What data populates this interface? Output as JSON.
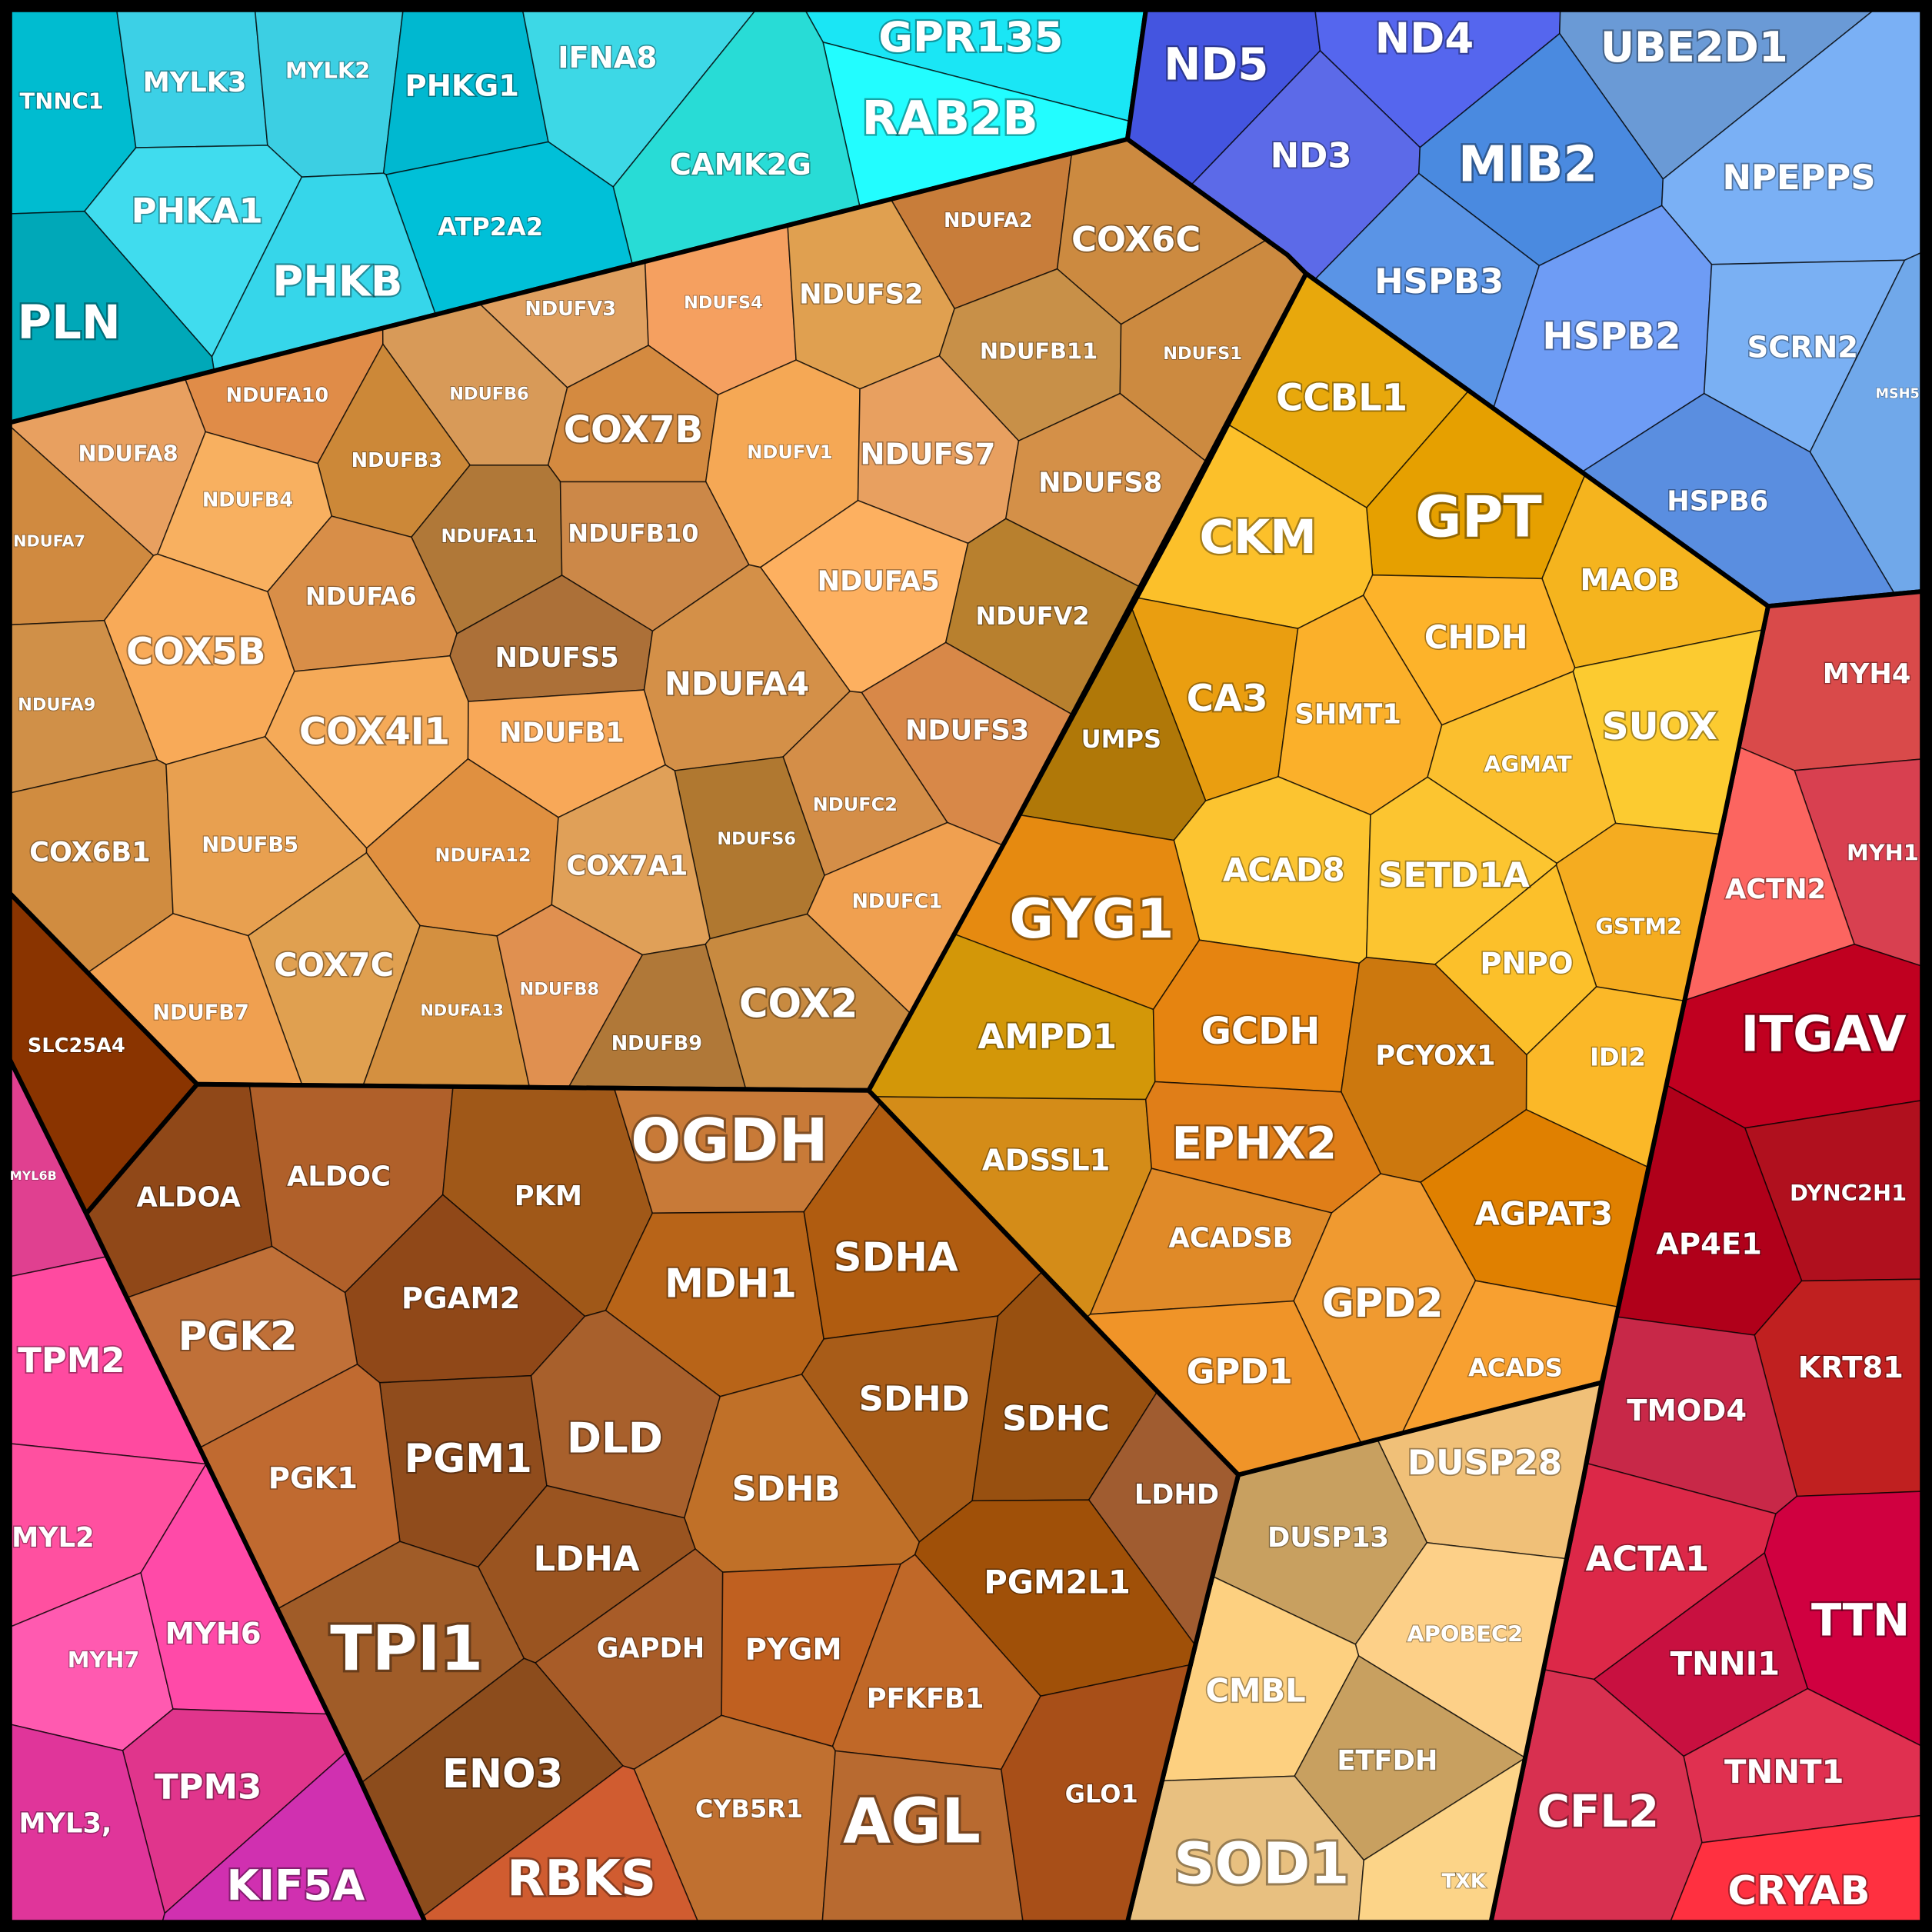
{
  "groups": [
    {
      "cells": [
        {
          "label": "TNNC1",
          "color": "#00bcd0"
        },
        {
          "label": "MYLK3",
          "color": "#3cd0e6"
        },
        {
          "label": "MYLK2",
          "color": "#3ccfe3"
        },
        {
          "label": "PHKG1",
          "color": "#00b8d0"
        },
        {
          "label": "IFNA8",
          "color": "#3dd8e6"
        },
        {
          "label": "GPR135",
          "color": "#1ae6f5"
        },
        {
          "label": "RAB2B",
          "color": "#22fdff"
        },
        {
          "label": "CAMK2G",
          "color": "#28dcd6"
        },
        {
          "label": "PHKA1",
          "color": "#40dcee"
        },
        {
          "label": "ATP2A2",
          "color": "#00c0d8"
        },
        {
          "label": "PHKB",
          "color": "#36d6ea"
        },
        {
          "label": "PLN",
          "color": "#00a8b8"
        }
      ]
    },
    {
      "cells": [
        {
          "label": "ND5",
          "color": "#4455e0"
        },
        {
          "label": "ND4",
          "color": "#5566ee"
        },
        {
          "label": "ND3",
          "color": "#5c6ae8"
        },
        {
          "label": "UBE2D1",
          "color": "#6a9ad6"
        },
        {
          "label": "MIB2",
          "color": "#4a8ae0"
        },
        {
          "label": "NPEPPS",
          "color": "#7ab0f5"
        },
        {
          "label": "HSPB3",
          "color": "#5a94e6"
        },
        {
          "label": "HSPB2",
          "color": "#6e9cf5"
        },
        {
          "label": "SCRN2",
          "color": "#7ab0f3"
        },
        {
          "label": "MSH5",
          "color": "#70a8ea"
        },
        {
          "label": "HSPB6",
          "color": "#5a8ee0"
        }
      ]
    },
    {
      "cells": [
        {
          "label": "MYH4",
          "color": "#d94a4a"
        },
        {
          "label": "MYH1",
          "color": "#d84050"
        },
        {
          "label": "ACTN2",
          "color": "#fc6560"
        },
        {
          "label": "ITGAV",
          "color": "#c00020"
        },
        {
          "label": "DYNC2H1",
          "color": "#b0101e"
        },
        {
          "label": "AP4E1",
          "color": "#b0001a"
        },
        {
          "label": "KRT81",
          "color": "#c02020"
        },
        {
          "label": "TMOD4",
          "color": "#c82848"
        },
        {
          "label": "ACTA1",
          "color": "#dc2848"
        },
        {
          "label": "TTN",
          "color": "#d00040"
        },
        {
          "label": "TNNI1",
          "color": "#c81040"
        },
        {
          "label": "TNNT1",
          "color": "#e03050"
        },
        {
          "label": "CFL2",
          "color": "#d83050"
        },
        {
          "label": "CRYAB",
          "color": "#ff3040"
        }
      ]
    },
    {
      "cells": [
        {
          "label": "CCBL1",
          "color": "#e8a80c"
        },
        {
          "label": "GPT",
          "color": "#e6a000"
        },
        {
          "label": "CKM",
          "color": "#fcc02a"
        },
        {
          "label": "MAOB",
          "color": "#f5b41e"
        },
        {
          "label": "CHDH",
          "color": "#fdb32a"
        },
        {
          "label": "CA3",
          "color": "#ea9e10"
        },
        {
          "label": "SHMT1",
          "color": "#fbb02a"
        },
        {
          "label": "SUOX",
          "color": "#fccb30"
        },
        {
          "label": "UMPS",
          "color": "#b07808"
        },
        {
          "label": "AGMAT",
          "color": "#fbbf2e"
        },
        {
          "label": "ACAD8",
          "color": "#fcc430"
        },
        {
          "label": "SETD1A",
          "color": "#fcc530"
        },
        {
          "label": "GSTM2",
          "color": "#f5ac20"
        },
        {
          "label": "PNPO",
          "color": "#fcc02a"
        },
        {
          "label": "IDI2",
          "color": "#fbb828"
        },
        {
          "label": "GYG1",
          "color": "#e68a10"
        },
        {
          "label": "AMPD1",
          "color": "#d39708"
        },
        {
          "label": "GCDH",
          "color": "#e68410"
        },
        {
          "label": "PCYOX1",
          "color": "#cc780e"
        },
        {
          "label": "ADSSL1",
          "color": "#d48c18"
        },
        {
          "label": "EPHX2",
          "color": "#e07e18"
        },
        {
          "label": "AGPAT3",
          "color": "#e08000"
        },
        {
          "label": "ACADSB",
          "color": "#e08a28"
        },
        {
          "label": "GPD2",
          "color": "#f09a30"
        },
        {
          "label": "GPD1",
          "color": "#f09428"
        },
        {
          "label": "ACADS",
          "color": "#f8a030"
        }
      ]
    },
    {
      "cells": [
        {
          "label": "DUSP28",
          "color": "#f0c078"
        },
        {
          "label": "DUSP13",
          "color": "#c8a060"
        },
        {
          "label": "APOBEC2",
          "color": "#fdd088"
        },
        {
          "label": "CMBL",
          "color": "#fdd080"
        },
        {
          "label": "ETFDH",
          "color": "#c8a060"
        },
        {
          "label": "SOD1",
          "color": "#e8c080"
        },
        {
          "label": "TXK",
          "color": "#fcd488"
        }
      ]
    },
    {
      "cells": [
        {
          "label": "NDUFA2",
          "color": "#c87d3a"
        },
        {
          "label": "COX6C",
          "color": "#cc8a40"
        },
        {
          "label": "NDUFV3",
          "color": "#e0a060"
        },
        {
          "label": "NDUFS4",
          "color": "#f5a060"
        },
        {
          "label": "NDUFS2",
          "color": "#e0a050"
        },
        {
          "label": "NDUFA10",
          "color": "#e08c48"
        },
        {
          "label": "NDUFB6",
          "color": "#d89a58"
        },
        {
          "label": "COX7B",
          "color": "#d48a40"
        },
        {
          "label": "NDUFB11",
          "color": "#c89048"
        },
        {
          "label": "NDUFS1",
          "color": "#cc8a40"
        },
        {
          "label": "NDUFA8",
          "color": "#e8a060"
        },
        {
          "label": "NDUFB3",
          "color": "#cc8838"
        },
        {
          "label": "NDUFV1",
          "color": "#f5a855"
        },
        {
          "label": "NDUFS7",
          "color": "#e8a060"
        },
        {
          "label": "NDUFB4",
          "color": "#f8b060"
        },
        {
          "label": "NDUFS8",
          "color": "#d49048"
        },
        {
          "label": "NDUFA7",
          "color": "#d08a40"
        },
        {
          "label": "NDUFA11",
          "color": "#b07838"
        },
        {
          "label": "NDUFB10",
          "color": "#cc8848"
        },
        {
          "label": "NDUFA6",
          "color": "#d88e48"
        },
        {
          "label": "NDUFA5",
          "color": "#fdb060"
        },
        {
          "label": "NDUFV2",
          "color": "#b8802e"
        },
        {
          "label": "COX5B",
          "color": "#f8aa58"
        },
        {
          "label": "NDUFS5",
          "color": "#ac7038"
        },
        {
          "label": "NDUFA4",
          "color": "#d49048"
        },
        {
          "label": "NDUFA9",
          "color": "#d09048"
        },
        {
          "label": "COX4I1",
          "color": "#f5aa58"
        },
        {
          "label": "NDUFB1",
          "color": "#f8a858"
        },
        {
          "label": "NDUFS3",
          "color": "#d88848"
        },
        {
          "label": "NDUFC2",
          "color": "#d48e48"
        },
        {
          "label": "NDUFS6",
          "color": "#b07830"
        },
        {
          "label": "COX6B1",
          "color": "#d08c40"
        },
        {
          "label": "NDUFB5",
          "color": "#e8a050"
        },
        {
          "label": "NDUFA12",
          "color": "#e09040"
        },
        {
          "label": "COX7A1",
          "color": "#e0a058"
        },
        {
          "label": "NDUFC1",
          "color": "#f0a050"
        },
        {
          "label": "COX7C",
          "color": "#e0a050"
        },
        {
          "label": "NDUFA13",
          "color": "#d49040"
        },
        {
          "label": "NDUFB8",
          "color": "#e09050"
        },
        {
          "label": "NDUFB7",
          "color": "#f0a050"
        },
        {
          "label": "COX2",
          "color": "#c88a40"
        },
        {
          "label": "NDUFB9",
          "color": "#b07838"
        }
      ]
    },
    {
      "cells": [
        {
          "label": "SLC25A4",
          "color": "#8a3400"
        }
      ]
    },
    {
      "cells": [
        {
          "label": "ALDOA",
          "color": "#904818"
        },
        {
          "label": "ALDOC",
          "color": "#b0602a"
        },
        {
          "label": "PKM",
          "color": "#a05818"
        },
        {
          "label": "OGDH",
          "color": "#c87a38"
        },
        {
          "label": "PGAM2",
          "color": "#904818"
        },
        {
          "label": "MDH1",
          "color": "#b86418"
        },
        {
          "label": "SDHA",
          "color": "#b05c10"
        },
        {
          "label": "PGK2",
          "color": "#c07038"
        },
        {
          "label": "PGM1",
          "color": "#904c1c"
        },
        {
          "label": "DLD",
          "color": "#a8602c"
        },
        {
          "label": "PGK1",
          "color": "#c06a30"
        },
        {
          "label": "SDHD",
          "color": "#a85c18"
        },
        {
          "label": "SDHC",
          "color": "#985010"
        },
        {
          "label": "SDHB",
          "color": "#c07028"
        },
        {
          "label": "LDHD",
          "color": "#a05c30"
        },
        {
          "label": "LDHA",
          "color": "#9a5420"
        },
        {
          "label": "PGM2L1",
          "color": "#a05008"
        },
        {
          "label": "TPI1",
          "color": "#a05c28"
        },
        {
          "label": "GAPDH",
          "color": "#a85c28"
        },
        {
          "label": "PYGM",
          "color": "#c06020"
        },
        {
          "label": "PFKFB1",
          "color": "#c06828"
        },
        {
          "label": "ENO3",
          "color": "#8c4c1c"
        },
        {
          "label": "CYB5R1",
          "color": "#c07030"
        },
        {
          "label": "AGL",
          "color": "#b86a30"
        },
        {
          "label": "GLO1",
          "color": "#a84f18"
        },
        {
          "label": "RBKS",
          "color": "#d05c30"
        }
      ]
    },
    {
      "cells": [
        {
          "label": "MYL6B",
          "color": "#e04090"
        },
        {
          "label": "TPM2",
          "color": "#ff4aa0"
        },
        {
          "label": "MYL2",
          "color": "#ff50a0"
        },
        {
          "label": "MYH7",
          "color": "#ff5ab0"
        },
        {
          "label": "MYH6",
          "color": "#ff4aa8"
        },
        {
          "label": "TPM3",
          "color": "#e0358c"
        },
        {
          "label": "MYL3,",
          "color": "#e0359a"
        },
        {
          "label": "KIF5A",
          "color": "#d030b0"
        }
      ]
    }
  ]
}
